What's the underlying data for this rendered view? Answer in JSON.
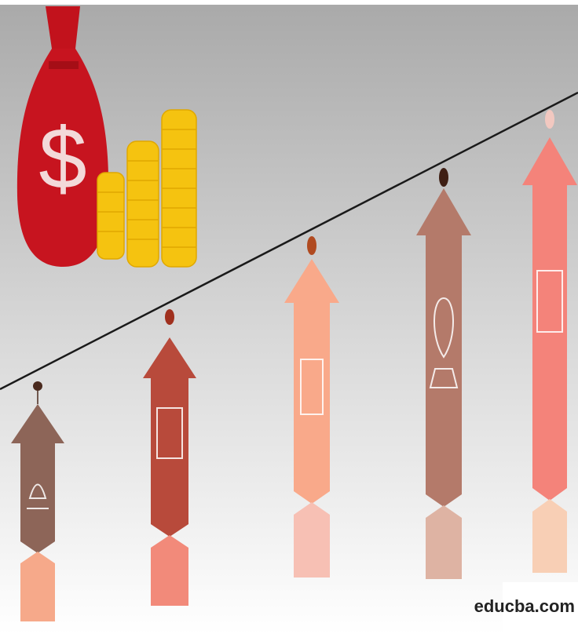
{
  "watermark": "educba.com"
}
